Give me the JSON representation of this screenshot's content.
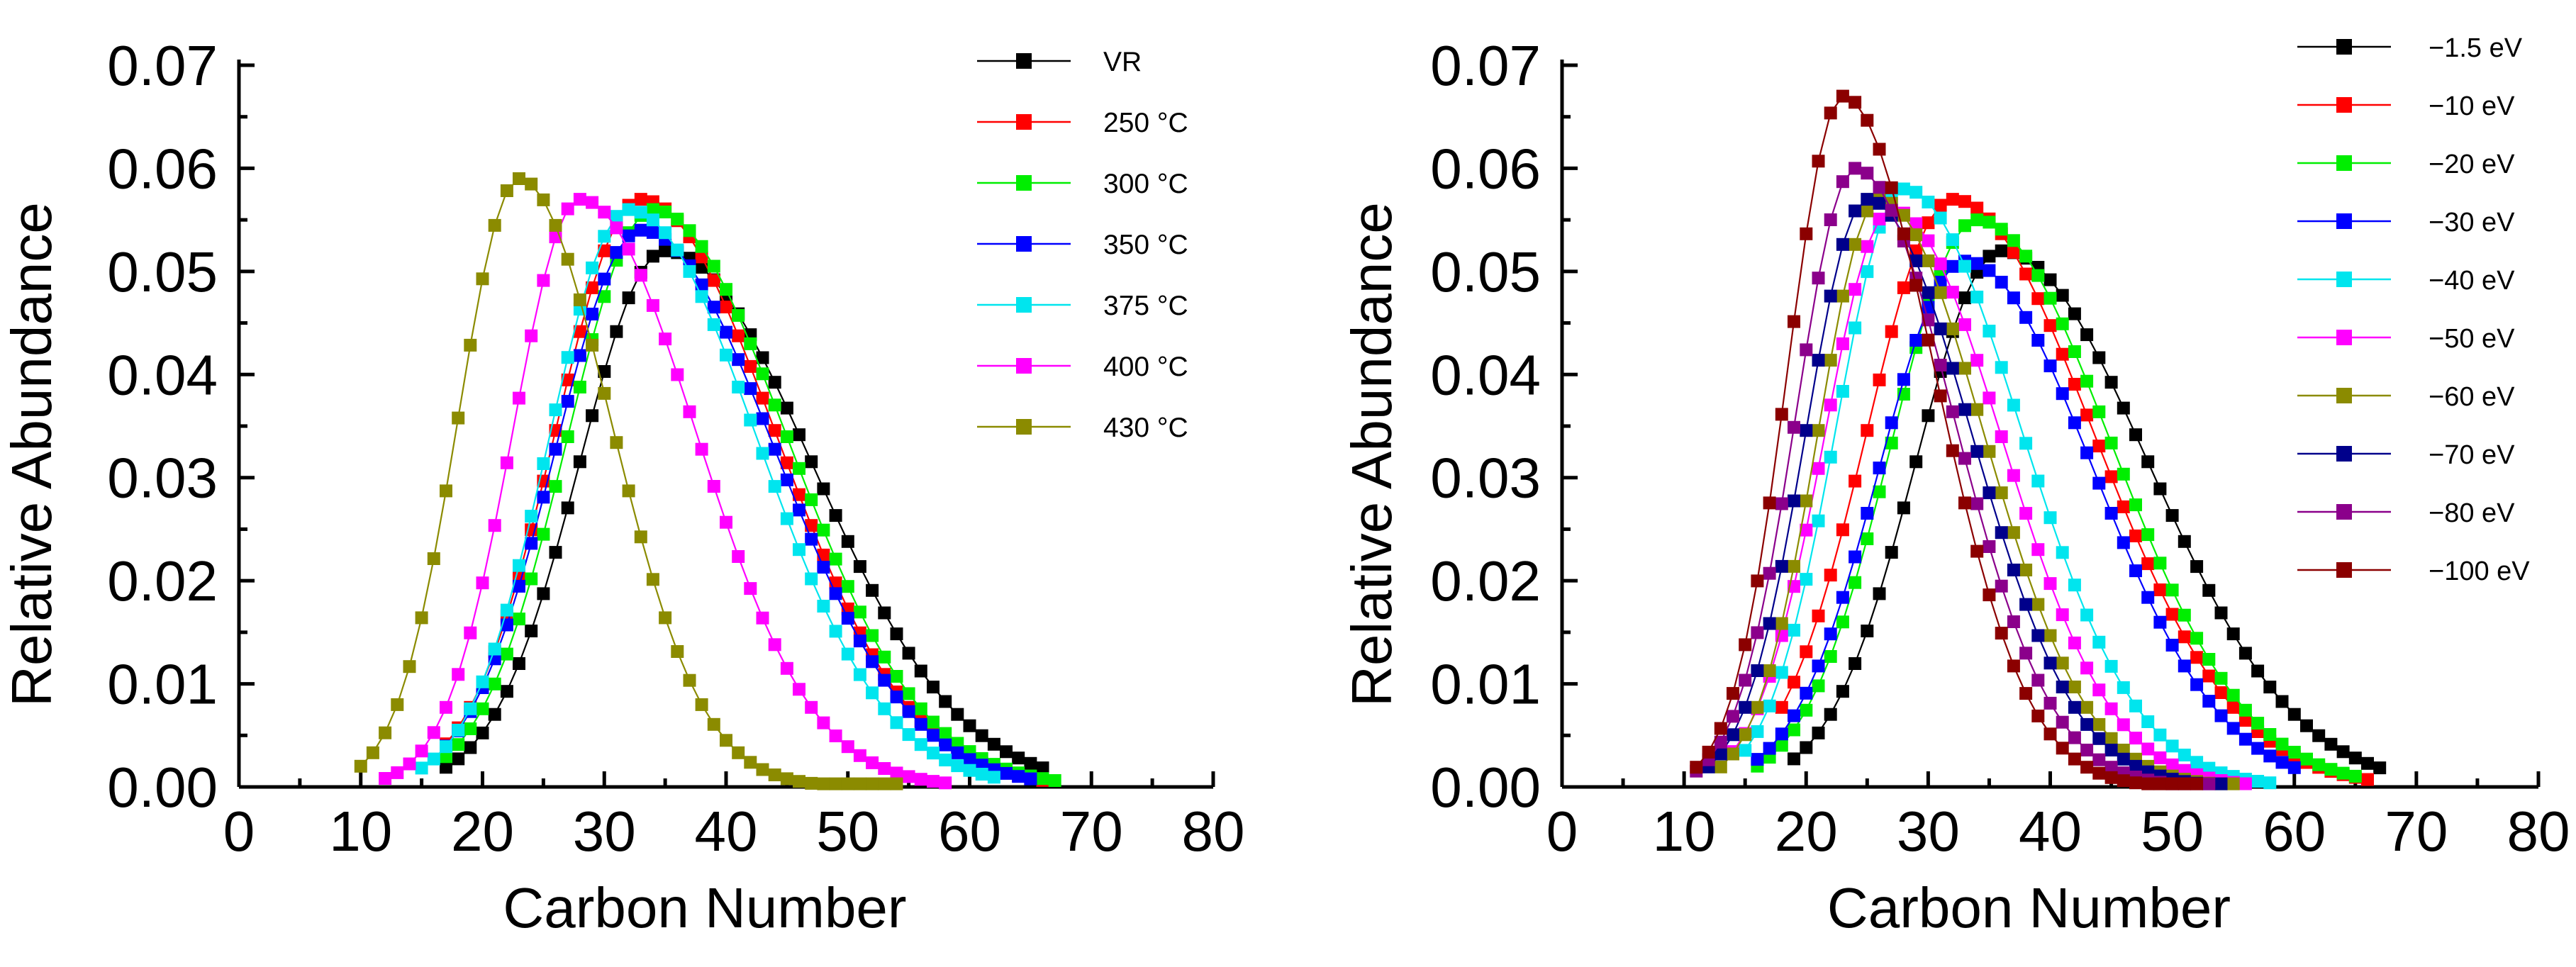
{
  "chart_data": [
    {
      "type": "line",
      "xlabel": "Carbon Number",
      "ylabel": "Relative Abundance",
      "xlim": [
        0,
        80
      ],
      "ylim": [
        0,
        0.07
      ],
      "x_ticks": [
        "0",
        "10",
        "20",
        "30",
        "40",
        "50",
        "60",
        "70",
        "80"
      ],
      "y_ticks": [
        "0.00",
        "0.01",
        "0.02",
        "0.03",
        "0.04",
        "0.05",
        "0.06",
        "0.07"
      ],
      "legend": "top-right",
      "series": [
        {
          "name": "VR",
          "color": "#000000",
          "peak_x": 35,
          "peak_y": 0.052,
          "sigma_left": 7,
          "sigma_right": 12,
          "x_start": 17,
          "x_end": 66
        },
        {
          "name": "250 °C",
          "color": "#ff0000",
          "peak_x": 33,
          "peak_y": 0.057,
          "sigma_left": 7,
          "sigma_right": 11,
          "x_start": 17,
          "x_end": 66
        },
        {
          "name": "300 °C",
          "color": "#00ee00",
          "peak_x": 34,
          "peak_y": 0.056,
          "sigma_left": 7,
          "sigma_right": 11,
          "x_start": 17,
          "x_end": 67
        },
        {
          "name": "350 °C",
          "color": "#0000ff",
          "peak_x": 33,
          "peak_y": 0.054,
          "sigma_left": 7,
          "sigma_right": 11,
          "x_start": 17,
          "x_end": 65
        },
        {
          "name": "375 °C",
          "color": "#00e5ee",
          "peak_x": 32,
          "peak_y": 0.056,
          "sigma_left": 6.5,
          "sigma_right": 10.5,
          "x_start": 15,
          "x_end": 62
        },
        {
          "name": "400 °C",
          "color": "#ff00ff",
          "peak_x": 28,
          "peak_y": 0.057,
          "sigma_left": 5.5,
          "sigma_right": 9.5,
          "x_start": 12,
          "x_end": 58
        },
        {
          "name": "430 °C",
          "color": "#8b8b00",
          "peak_x": 23,
          "peak_y": 0.059,
          "sigma_left": 5,
          "sigma_right": 7.5,
          "x_start": 10,
          "x_end": 54
        }
      ]
    },
    {
      "type": "line",
      "xlabel": "Carbon Number",
      "ylabel": "Relative Abundance",
      "xlim": [
        0,
        80
      ],
      "ylim": [
        0,
        0.07
      ],
      "x_ticks": [
        "0",
        "10",
        "20",
        "30",
        "40",
        "50",
        "60",
        "70",
        "80"
      ],
      "y_ticks": [
        "0.00",
        "0.01",
        "0.02",
        "0.03",
        "0.04",
        "0.05",
        "0.06",
        "0.07"
      ],
      "legend": "top-right",
      "series": [
        {
          "name": "−1.5 eV",
          "color": "#000000",
          "peak_x": 36,
          "peak_y": 0.052,
          "sigma_left": 7,
          "sigma_right": 12,
          "x_start": 19,
          "x_end": 67
        },
        {
          "name": "−10 eV",
          "color": "#ff0000",
          "peak_x": 32,
          "peak_y": 0.057,
          "sigma_left": 7,
          "sigma_right": 11.5,
          "x_start": 18,
          "x_end": 66
        },
        {
          "name": "−20 eV",
          "color": "#00ee00",
          "peak_x": 34,
          "peak_y": 0.055,
          "sigma_left": 7,
          "sigma_right": 11,
          "x_start": 16,
          "x_end": 65
        },
        {
          "name": "−30 eV",
          "color": "#0000ff",
          "peak_x": 33,
          "peak_y": 0.051,
          "sigma_left": 7,
          "sigma_right": 10.5,
          "x_start": 16,
          "x_end": 60
        },
        {
          "name": "−40 eV",
          "color": "#00e5ee",
          "peak_x": 28,
          "peak_y": 0.058,
          "sigma_left": 5.5,
          "sigma_right": 9.5,
          "x_start": 15,
          "x_end": 58
        },
        {
          "name": "−50 eV",
          "color": "#ff00ff",
          "peak_x": 27,
          "peak_y": 0.056,
          "sigma_left": 5.5,
          "sigma_right": 9,
          "x_start": 14,
          "x_end": 56
        },
        {
          "name": "−60 eV",
          "color": "#8b8b00",
          "peak_x": 26,
          "peak_y": 0.057,
          "sigma_left": 5,
          "sigma_right": 8.5,
          "x_start": 13,
          "x_end": 55
        },
        {
          "name": "−70 eV",
          "color": "#00008b",
          "peak_x": 25,
          "peak_y": 0.057,
          "sigma_left": 5,
          "sigma_right": 8.5,
          "x_start": 12,
          "x_end": 54
        },
        {
          "name": "−80 eV",
          "color": "#8b008b",
          "peak_x": 24,
          "peak_y": 0.06,
          "sigma_left": 4.8,
          "sigma_right": 8,
          "x_start": 11,
          "x_end": 53
        },
        {
          "name": "−100 eV",
          "color": "#8b0000",
          "peak_x": 23,
          "peak_y": 0.067,
          "sigma_left": 4.5,
          "sigma_right": 7.5,
          "x_start": 11,
          "x_end": 52
        }
      ]
    }
  ]
}
